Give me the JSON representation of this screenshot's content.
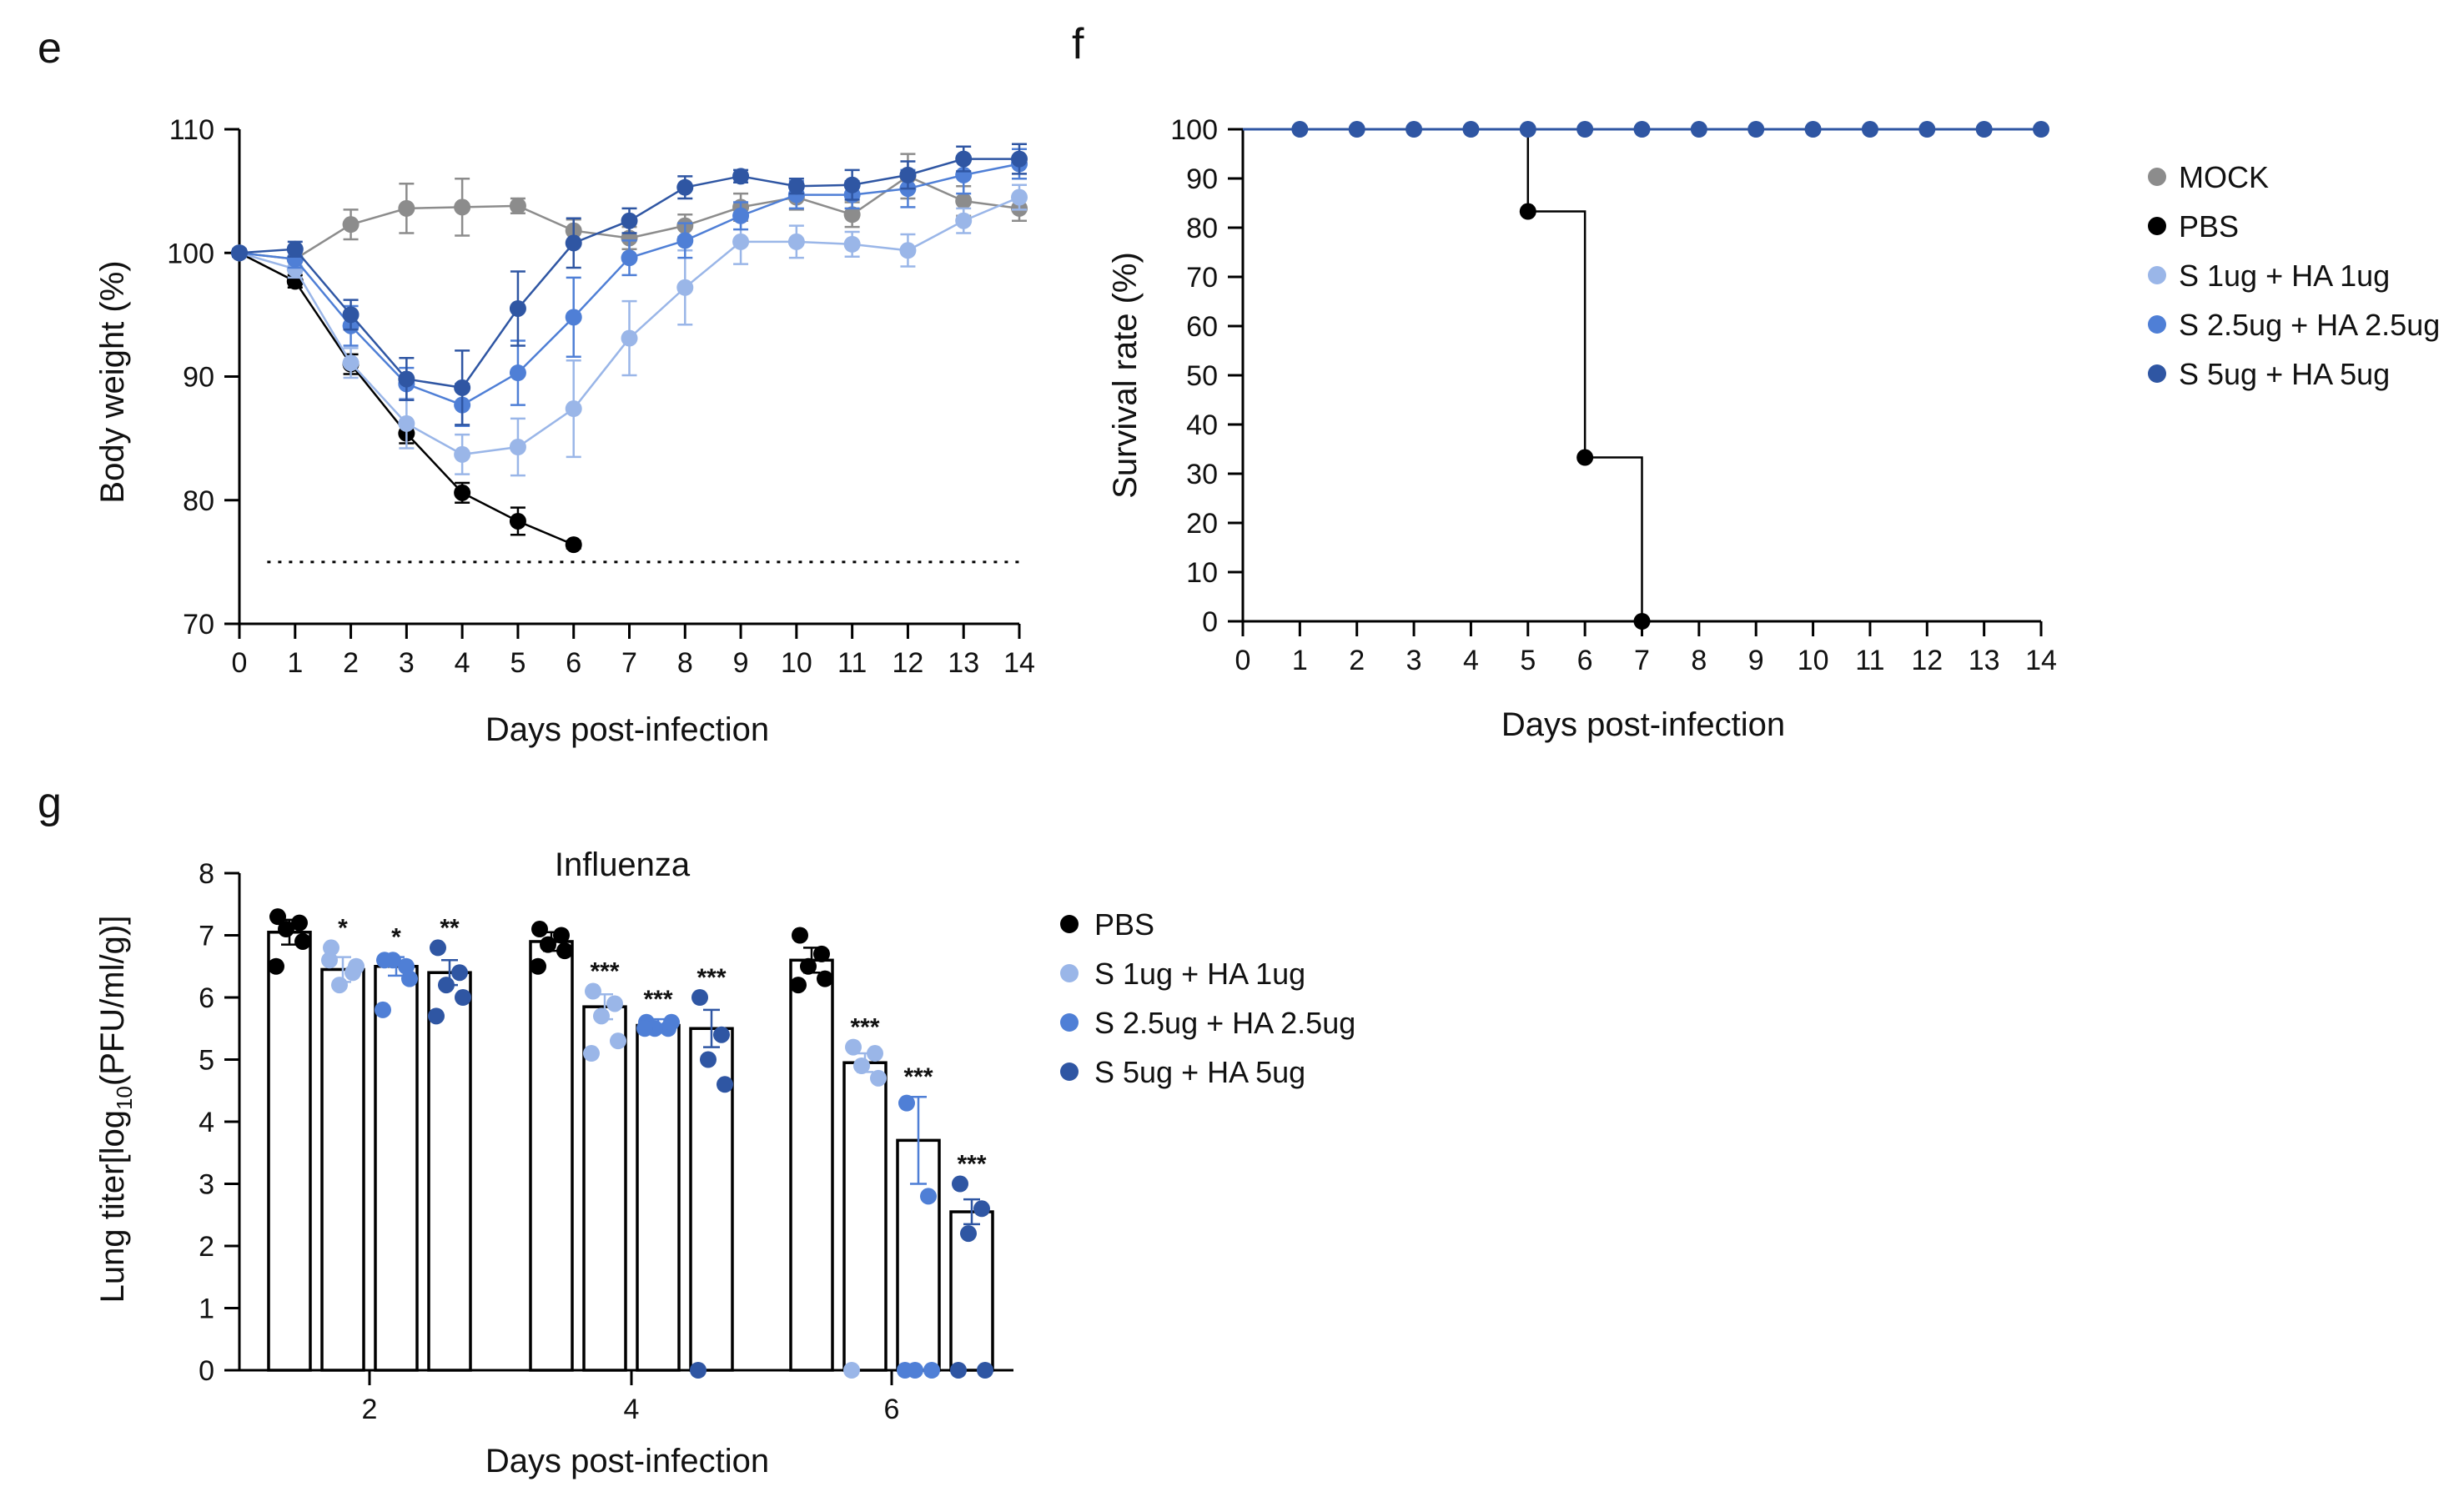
{
  "colors": {
    "mock": "#8c8c8c",
    "pbs": "#000000",
    "low": "#9ab6e8",
    "mid": "#4f7fd6",
    "high": "#2f56a3",
    "axis": "#000000"
  },
  "chart_data": [
    {
      "panel": "e",
      "type": "line",
      "xlabel": "Days post-infection",
      "ylabel": "Body weight (%)",
      "xlim": [
        0,
        14
      ],
      "ylim": [
        70,
        110
      ],
      "xticks": [
        "0",
        "1",
        "2",
        "3",
        "4",
        "5",
        "6",
        "7",
        "8",
        "9",
        "10",
        "11",
        "12",
        "13",
        "14"
      ],
      "yticks": [
        "70",
        "80",
        "90",
        "100",
        "110"
      ],
      "threshold": 75,
      "series": [
        {
          "name": "MOCK",
          "color": "mock",
          "x": [
            0,
            1,
            2,
            3,
            4,
            5,
            6,
            7,
            8,
            9,
            10,
            11,
            12,
            13,
            14
          ],
          "y": [
            100,
            99.5,
            102.3,
            103.6,
            103.7,
            103.8,
            101.8,
            101.2,
            102.2,
            103.7,
            104.5,
            103.1,
            106.2,
            104.2,
            103.6
          ],
          "err": [
            0.3,
            0.6,
            1.2,
            2,
            2.3,
            0.6,
            0.9,
            0.9,
            0.9,
            1.1,
            1,
            1,
            1.8,
            1.2,
            1
          ]
        },
        {
          "name": "PBS",
          "color": "pbs",
          "x": [
            0,
            1,
            2,
            3,
            4,
            5,
            6
          ],
          "y": [
            100,
            97.7,
            91,
            85.4,
            80.6,
            78.3,
            76.4
          ],
          "err": [
            0.2,
            0.5,
            0.8,
            0.8,
            0.8,
            1.1,
            0.3
          ]
        },
        {
          "name": "S 1ug + HA 1ug",
          "color": "low",
          "x": [
            0,
            1,
            2,
            3,
            4,
            5,
            6,
            7,
            8,
            9,
            10,
            11,
            12,
            13,
            14
          ],
          "y": [
            100,
            98.7,
            91.1,
            86.2,
            83.7,
            84.3,
            87.4,
            93.1,
            97.2,
            100.9,
            100.9,
            100.7,
            100.2,
            102.6,
            104.5
          ],
          "err": [
            0.3,
            0.7,
            1.2,
            2,
            1.6,
            2.3,
            3.9,
            3,
            3,
            1.8,
            1.3,
            1,
            1.3,
            1,
            1
          ]
        },
        {
          "name": "S 2.5ug + HA 2.5ug",
          "color": "mid",
          "x": [
            0,
            1,
            2,
            3,
            4,
            5,
            6,
            7,
            8,
            9,
            10,
            11,
            12,
            13,
            14
          ],
          "y": [
            100,
            99.5,
            94.1,
            89.4,
            87.7,
            90.3,
            94.8,
            99.6,
            101,
            103,
            104.7,
            104.7,
            105.2,
            106.3,
            107.2
          ],
          "err": [
            0.3,
            0.7,
            1.6,
            1.3,
            1.7,
            2.6,
            3.2,
            1.4,
            1.4,
            1.1,
            1.1,
            1.1,
            1.5,
            1.5,
            1.2
          ]
        },
        {
          "name": "S 5ug + HA 5ug",
          "color": "high",
          "x": [
            0,
            1,
            2,
            3,
            4,
            5,
            6,
            7,
            8,
            9,
            10,
            11,
            12,
            13,
            14
          ],
          "y": [
            100,
            100.3,
            95,
            89.8,
            89.1,
            95.5,
            100.8,
            102.6,
            105.3,
            106.2,
            105.4,
            105.5,
            106.3,
            107.6,
            107.6
          ],
          "err": [
            0.3,
            0.6,
            1.2,
            1.7,
            3,
            3,
            2,
            1,
            0.9,
            0.5,
            0.6,
            1.2,
            1.1,
            1,
            1.2
          ]
        }
      ]
    },
    {
      "panel": "f",
      "type": "line",
      "xlabel": "Days post-infection",
      "ylabel": "Survival rate (%)",
      "xlim": [
        0,
        14
      ],
      "ylim": [
        0,
        100
      ],
      "xticks": [
        "0",
        "1",
        "2",
        "3",
        "4",
        "5",
        "6",
        "7",
        "8",
        "9",
        "10",
        "11",
        "12",
        "13",
        "14"
      ],
      "yticks": [
        "0",
        "10",
        "20",
        "30",
        "40",
        "50",
        "60",
        "70",
        "80",
        "90",
        "100"
      ],
      "legend": [
        "MOCK",
        "PBS",
        "S 1ug + HA 1ug",
        "S 2.5ug + HA 2.5ug",
        "S 5ug + HA 5ug"
      ],
      "series": [
        {
          "name": "PBS",
          "color": "pbs",
          "steps": [
            [
              0,
              100
            ],
            [
              5,
              83.3
            ],
            [
              6,
              33.3
            ],
            [
              7,
              0
            ]
          ],
          "markers_x": [
            5,
            6,
            7
          ]
        },
        {
          "name": "S 5ug + HA 5ug",
          "color": "high",
          "steps": [
            [
              0,
              100
            ]
          ],
          "markers_x": [
            1,
            2,
            3,
            4,
            5,
            6,
            7,
            8,
            9,
            10,
            11,
            12,
            13,
            14
          ]
        }
      ]
    },
    {
      "panel": "g",
      "type": "bar",
      "title": "Influenza",
      "xlabel": "Days post-infection",
      "ylabel_main": "Lung titer[log",
      "ylabel_sub": "10",
      "ylabel_tail": "(PFU/ml/g)]",
      "ylim": [
        0,
        8
      ],
      "yticks": [
        "0",
        "1",
        "2",
        "3",
        "4",
        "5",
        "6",
        "7",
        "8"
      ],
      "categories": [
        "2",
        "4",
        "6"
      ],
      "legend": [
        "PBS",
        "S 1ug + HA 1ug",
        "S 2.5ug + HA 2.5ug",
        "S 5ug + HA 5ug"
      ],
      "series": [
        {
          "name": "PBS",
          "color": "pbs",
          "values": [
            7.05,
            6.9,
            6.6
          ],
          "err": [
            0.2,
            0.15,
            0.2
          ],
          "sig": [
            "",
            "",
            ""
          ],
          "points": [
            [
              7.3,
              7.2,
              7.1,
              6.9,
              6.5
            ],
            [
              7.1,
              7.0,
              6.85,
              6.75,
              6.5
            ],
            [
              7.0,
              6.7,
              6.5,
              6.3,
              6.2
            ]
          ]
        },
        {
          "name": "S 1ug + HA 1ug",
          "color": "low",
          "values": [
            6.45,
            5.85,
            4.95
          ],
          "err": [
            0.2,
            0.2,
            0.15
          ],
          "sig": [
            "*",
            "***",
            "***"
          ],
          "points": [
            [
              6.8,
              6.4,
              6.2,
              6.5,
              6.6
            ],
            [
              6.1,
              5.9,
              5.7,
              5.3,
              5.1
            ],
            [
              5.2,
              5.1,
              4.9,
              4.7,
              0
            ]
          ]
        },
        {
          "name": "S 2.5ug + HA 2.5ug",
          "color": "mid",
          "values": [
            6.5,
            5.55,
            3.7
          ],
          "err": [
            0.15,
            0.1,
            0.7
          ],
          "sig": [
            "*",
            "***",
            "***"
          ],
          "points": [
            [
              6.6,
              6.5,
              6.6,
              6.3,
              5.8
            ],
            [
              5.6,
              5.5,
              5.5,
              5.6,
              5.5
            ],
            [
              4.3,
              2.8,
              0,
              0,
              0
            ]
          ]
        },
        {
          "name": "S 5ug + HA 5ug",
          "color": "high",
          "values": [
            6.4,
            5.5,
            2.55
          ],
          "err": [
            0.2,
            0.3,
            0.2
          ],
          "sig": [
            "**",
            "***",
            "***"
          ],
          "points": [
            [
              6.8,
              6.4,
              6.2,
              6.0,
              5.7
            ],
            [
              6.0,
              5.4,
              5.0,
              4.6,
              0
            ],
            [
              3.0,
              2.6,
              2.2,
              0,
              0
            ]
          ]
        }
      ]
    }
  ]
}
